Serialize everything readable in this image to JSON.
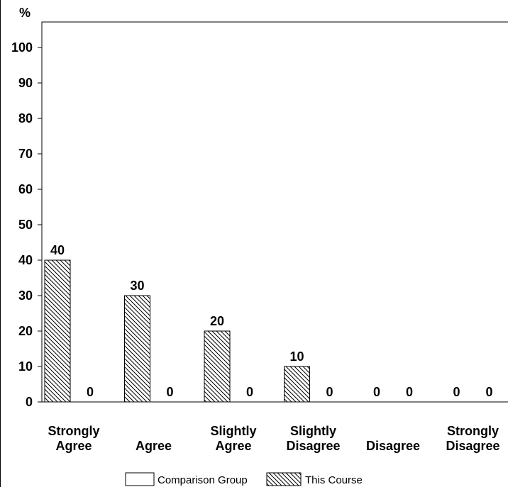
{
  "chart_data": {
    "type": "bar",
    "ylabel": "%",
    "ylim": [
      0,
      100
    ],
    "yticks": [
      0,
      10,
      20,
      30,
      40,
      50,
      60,
      70,
      80,
      90,
      100
    ],
    "categories": [
      [
        "Strongly",
        "Agree"
      ],
      [
        "Agree"
      ],
      [
        "Slightly",
        "Agree"
      ],
      [
        "Slightly",
        "Disagree"
      ],
      [
        "Disagree"
      ],
      [
        "Strongly",
        "Disagree"
      ]
    ],
    "series": [
      {
        "name": "This Course",
        "values": [
          40,
          30,
          20,
          10,
          0,
          0
        ],
        "fill": "hatch"
      },
      {
        "name": "Comparison Group",
        "values": [
          0,
          0,
          0,
          0,
          0,
          0
        ],
        "fill": "white"
      }
    ],
    "data_labels": [
      [
        "40",
        "0"
      ],
      [
        "30",
        "0"
      ],
      [
        "20",
        "0"
      ],
      [
        "10",
        "0"
      ],
      [
        "0",
        "0"
      ],
      [
        "0",
        "0"
      ]
    ],
    "legend": {
      "position": "bottom",
      "entries": [
        {
          "label": "Comparison Group",
          "fill": "white"
        },
        {
          "label": "This Course",
          "fill": "hatch"
        }
      ]
    },
    "grid": false,
    "colors": {
      "line": "#000000",
      "background": "#ffffff"
    }
  }
}
